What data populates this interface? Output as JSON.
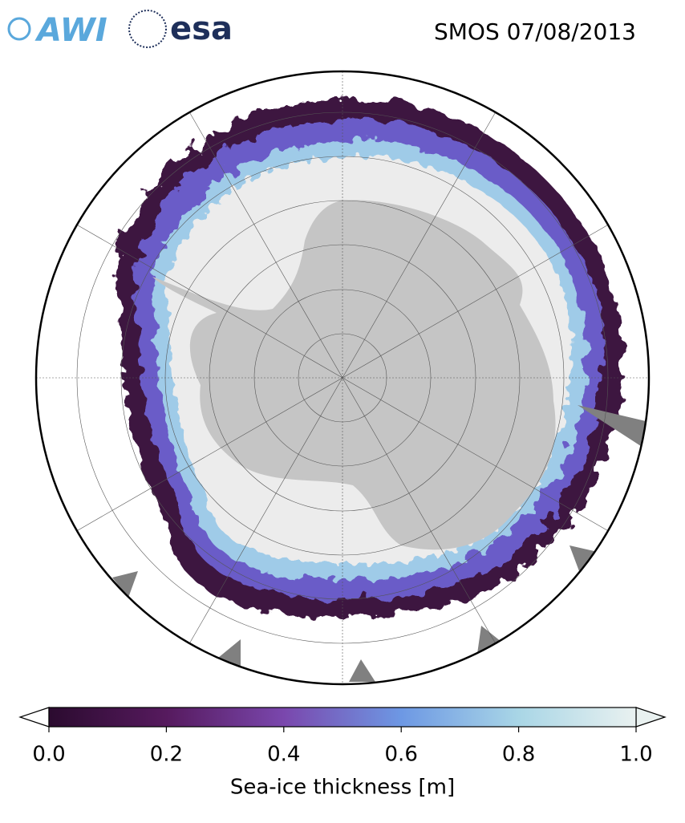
{
  "header": {
    "logos": [
      "AWI",
      "esa"
    ],
    "title": "SMOS 07/08/2013"
  },
  "colorbar": {
    "label": "Sea-ice thickness [m]",
    "lim": [
      0,
      1
    ],
    "ticks": [
      {
        "value": 0,
        "label": "0.0"
      },
      0.2,
      0.4,
      0.6,
      0.8,
      {
        "value": 1,
        "label": "1.0"
      }
    ],
    "colors": [
      "#2b0b2f",
      "#561a5e",
      "#7a47ad",
      "#6d98e4",
      "#a9d6e6",
      "#e9f1f0"
    ]
  }
}
